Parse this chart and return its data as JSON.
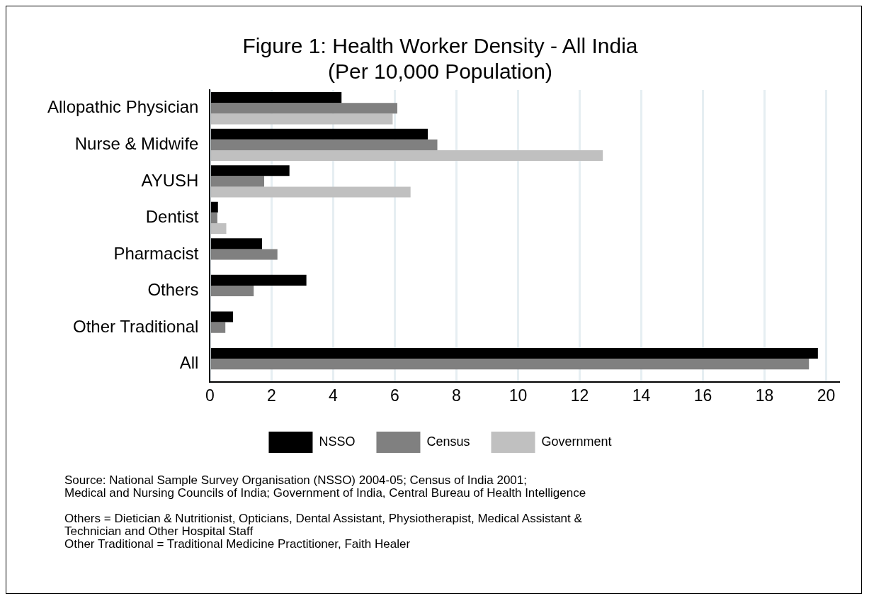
{
  "chart_data": {
    "type": "bar",
    "orientation": "horizontal",
    "title": "Figure 1: Health Worker Density - All India",
    "subtitle": "(Per 10,000 Population)",
    "categories": [
      "Allopathic Physician",
      "Nurse & Midwife",
      "AYUSH",
      "Dentist",
      "Pharmacist",
      "Others",
      "Other Traditional",
      "All"
    ],
    "series": [
      {
        "name": "NSSO",
        "color": "#000000",
        "values": [
          4.27,
          7.07,
          2.58,
          0.26,
          1.69,
          3.13,
          0.75,
          19.73
        ]
      },
      {
        "name": "Census",
        "color": "#808080",
        "values": [
          6.08,
          7.38,
          1.76,
          0.24,
          2.19,
          1.42,
          0.5,
          19.44
        ]
      },
      {
        "name": "Government",
        "color": "#c0c0c0",
        "values": [
          5.93,
          12.75,
          6.51,
          0.53,
          null,
          null,
          null,
          null
        ]
      }
    ],
    "xlim": [
      0,
      20.4
    ],
    "xticks": [
      0,
      2,
      4,
      6,
      8,
      10,
      12,
      14,
      16,
      18,
      20
    ],
    "grid": "x",
    "legend": "bottom",
    "annotations": [
      "Source: National Sample Survey Organisation (NSSO) 2004-05; Census of India 2001;\nMedical and Nursing Councils of India; Government of India, Central Bureau of Health Intelligence",
      "Others = Dietician & Nutritionist, Opticians, Dental Assistant, Physiotherapist, Medical Assistant &\nTechnician and Other Hospital Staff\nOther Traditional = Traditional Medicine Practitioner, Faith Healer"
    ]
  }
}
